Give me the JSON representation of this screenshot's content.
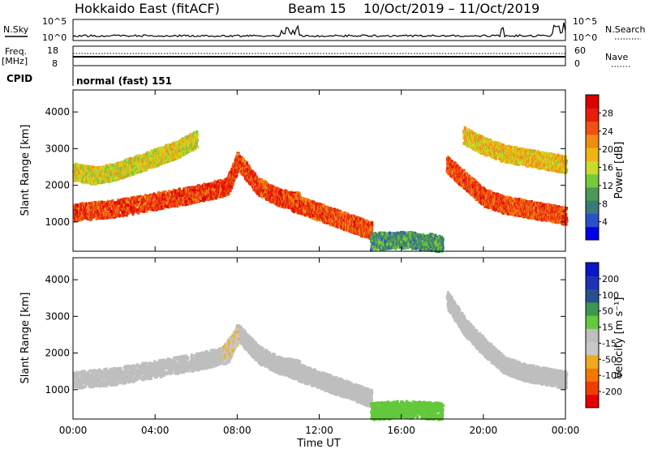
{
  "header": {
    "station": "Hokkaido East (fitACF)",
    "beam": "Beam 15",
    "date_range": "10/Oct/2019 – 11/Oct/2019"
  },
  "aux_panels": {
    "nsky_label": "N.Sky",
    "nsearch_label": "N.Search",
    "nsky_ticks": [
      "10^5",
      "10^0"
    ],
    "freq_label": "Freq.",
    "freq_unit": "[MHz]",
    "freq_ticks": [
      "18",
      "8"
    ],
    "nave_label": "Nave",
    "nave_ticks": [
      "60",
      "0"
    ],
    "cpid_label": "CPID",
    "cpid_value": "normal (fast) 151"
  },
  "colors": {
    "power_scale": [
      "#0000e6",
      "#2a50c8",
      "#3c7a78",
      "#4a9a55",
      "#78c83c",
      "#c8dc28",
      "#f0b414",
      "#f08c14",
      "#f05014",
      "#e61e0a",
      "#dc0000"
    ],
    "velocity_scale": [
      "#e60000",
      "#f03c00",
      "#f07800",
      "#f0aa1e",
      "#c8c8c8",
      "#bebebe",
      "#64c83c",
      "#3c9650",
      "#28508c",
      "#1e32b4",
      "#0a14c8"
    ]
  },
  "chart_data": [
    {
      "type": "heatmap",
      "ylabel": "Slant Range [km]",
      "y_ticks": [
        "4000",
        "3000",
        "2000",
        "1000"
      ],
      "ylim": [
        200,
        4600
      ],
      "xlim_hours": [
        0,
        24
      ],
      "colorbar": {
        "label": "Power [dB]",
        "ticks": [
          "28",
          "24",
          "20",
          "16",
          "12",
          "8",
          "4"
        ],
        "range": [
          0,
          32
        ]
      },
      "echo_bands": [
        {
          "x": [
            0,
            2,
            4,
            6,
            7.5,
            8,
            9,
            10,
            11
          ],
          "y": [
            1300,
            1400,
            1600,
            1800,
            2000,
            2700,
            2000,
            1700,
            1600
          ],
          "power_db": 28
        },
        {
          "x": [
            10.5,
            12,
            13,
            14,
            14.5
          ],
          "y": [
            1600,
            1300,
            1100,
            900,
            800
          ],
          "power_db": 27
        },
        {
          "x": [
            18.2,
            19,
            20,
            21,
            22,
            23,
            24
          ],
          "y": [
            2600,
            2200,
            1700,
            1500,
            1400,
            1300,
            1200
          ],
          "power_db": 27
        },
        {
          "x": [
            19,
            20,
            21,
            22,
            23,
            24
          ],
          "y": [
            3400,
            3100,
            2900,
            2800,
            2700,
            2600
          ],
          "power_db": 20
        },
        {
          "x": [
            0,
            1,
            2,
            3,
            4,
            5,
            6
          ],
          "y": [
            2400,
            2300,
            2400,
            2600,
            2800,
            3000,
            3300
          ],
          "power_db": 18
        },
        {
          "x": [
            14.5,
            16,
            18
          ],
          "y": [
            500,
            550,
            450
          ],
          "power_db": 10
        }
      ]
    },
    {
      "type": "heatmap",
      "ylabel": "Slant Range [km]",
      "y_ticks": [
        "4000",
        "3000",
        "2000",
        "1000"
      ],
      "ylim": [
        200,
        4600
      ],
      "xlim_hours": [
        0,
        24
      ],
      "xlabel": "Time UT",
      "x_ticks": [
        "00:00",
        "04:00",
        "08:00",
        "12:00",
        "16:00",
        "20:00",
        "00:00"
      ],
      "colorbar": {
        "label": "Velocity [m s⁻¹]",
        "ticks": [
          "200",
          "100",
          "50",
          "15",
          "-15",
          "-50",
          "-100",
          "-200"
        ],
        "range": [
          -250,
          250
        ]
      },
      "echo_bands": [
        {
          "x": [
            0,
            2,
            4,
            6,
            7.5,
            8,
            9,
            10,
            11
          ],
          "y": [
            1300,
            1400,
            1600,
            1800,
            2000,
            2600,
            2000,
            1700,
            1600
          ],
          "velocity": -5
        },
        {
          "x": [
            7.3,
            8
          ],
          "y": [
            2000,
            2500
          ],
          "velocity": -70
        },
        {
          "x": [
            10.5,
            12,
            13,
            14,
            14.5
          ],
          "y": [
            1600,
            1300,
            1100,
            900,
            800
          ],
          "velocity": 0
        },
        {
          "x": [
            18.2,
            19,
            20,
            21,
            22,
            23,
            24
          ],
          "y": [
            3500,
            2800,
            2200,
            1700,
            1500,
            1400,
            1300
          ],
          "velocity": 0
        },
        {
          "x": [
            14.5,
            16,
            18
          ],
          "y": [
            450,
            500,
            450
          ],
          "velocity": 40
        }
      ]
    }
  ]
}
